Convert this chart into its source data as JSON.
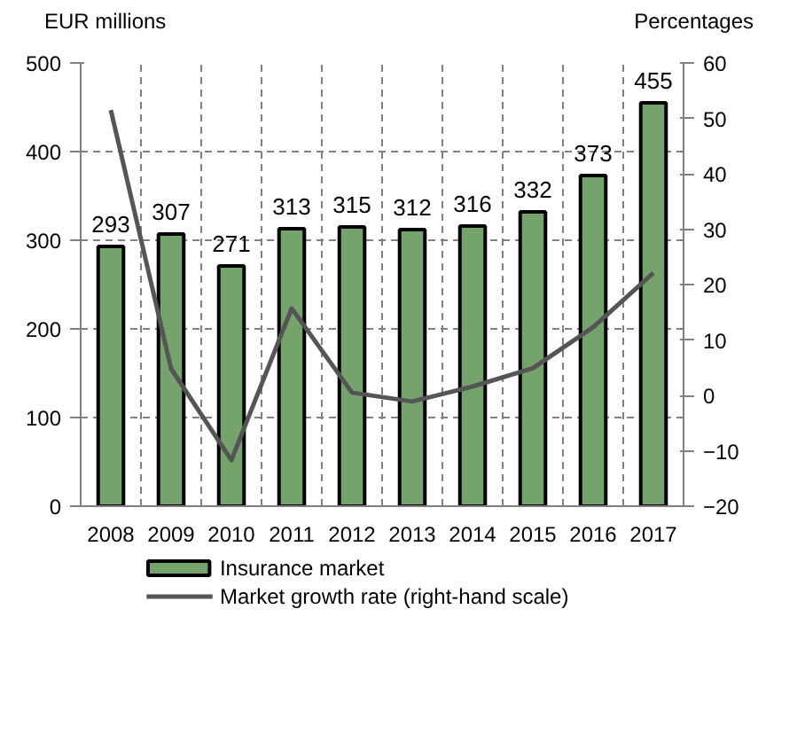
{
  "chart_data": {
    "type": "bar",
    "ylabel": "EUR millions",
    "y2label": "Percentages",
    "categories": [
      "2008",
      "2009",
      "2010",
      "2011",
      "2012",
      "2013",
      "2014",
      "2015",
      "2016",
      "2017"
    ],
    "series": [
      {
        "name": "Insurance market",
        "color": "#74a46c",
        "values": [
          293,
          307,
          271,
          313,
          315,
          312,
          316,
          332,
          373,
          455
        ],
        "value_labels": [
          "293",
          "307",
          "271",
          "313",
          "315",
          "312",
          "316",
          "332",
          "373",
          "455"
        ]
      },
      {
        "name": "Market growth rate (right-hand scale)",
        "type": "line",
        "axis": "y2",
        "color": "#555555",
        "values": [
          51.5,
          4.8,
          -11.7,
          15.7,
          0.5,
          -1.1,
          1.6,
          4.9,
          12.3,
          22.1
        ]
      }
    ],
    "ylim": [
      0,
      500
    ],
    "yticks": [
      0,
      100,
      200,
      300,
      400,
      500
    ],
    "y2lim": [
      -20,
      60
    ],
    "y2ticks": [
      -20,
      -10,
      0,
      10,
      20,
      30,
      40,
      50,
      60
    ],
    "grid": true,
    "legend": "bottom",
    "marker": "none",
    "line_style": "solid"
  }
}
